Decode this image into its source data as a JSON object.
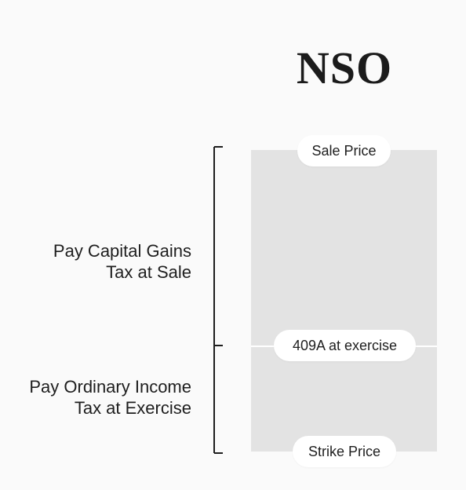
{
  "title": "NSO",
  "markers": {
    "sale_price": "Sale Price",
    "exercise_409a": "409A at exercise",
    "strike_price": "Strike Price"
  },
  "labels": {
    "capital_gains": [
      "Pay Capital Gains",
      "Tax at Sale"
    ],
    "ordinary_income": [
      "Pay Ordinary Income",
      "Tax at Exercise"
    ]
  },
  "colors": {
    "background": "#fafafa",
    "bar": "#e3e3e3",
    "pill": "#ffffff",
    "text": "#1e1e1e"
  }
}
